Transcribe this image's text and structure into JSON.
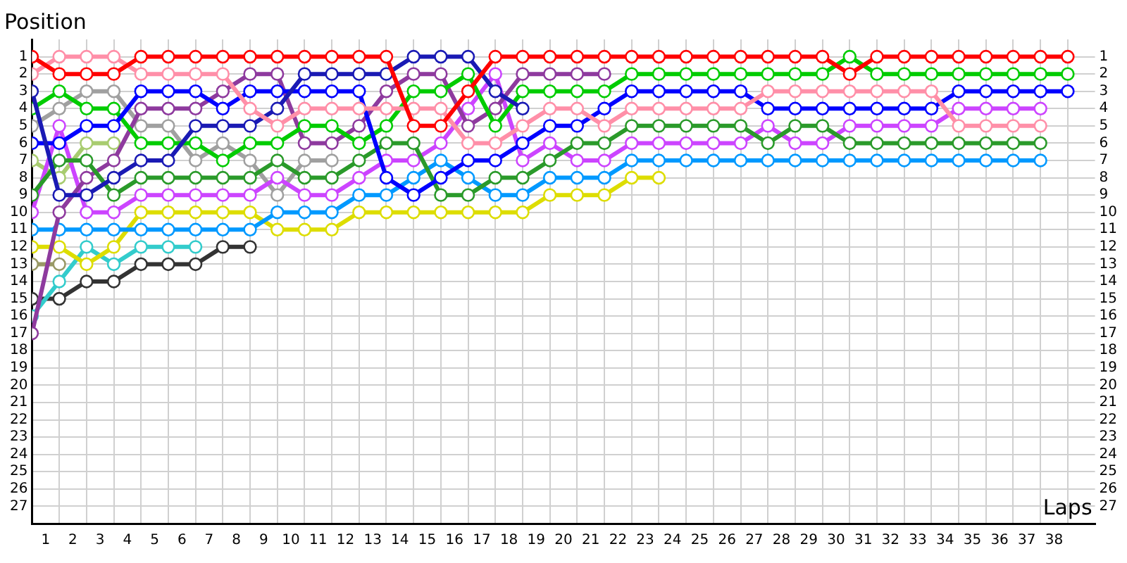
{
  "chart_data": {
    "type": "line",
    "xlabel": "Laps",
    "ylabel": "Position",
    "x": [
      0,
      1,
      2,
      3,
      4,
      5,
      6,
      7,
      8,
      9,
      10,
      11,
      12,
      13,
      14,
      15,
      16,
      17,
      18,
      19,
      20,
      21,
      22,
      23,
      24,
      25,
      26,
      27,
      28,
      29,
      30,
      31,
      32,
      33,
      34,
      35,
      36,
      37,
      38
    ],
    "xlim": [
      0,
      39
    ],
    "xticks": [
      {
        "value": 0,
        "label": null
      },
      {
        "value": 0.5,
        "label": "1"
      },
      {
        "value": 1,
        "label": null
      },
      {
        "value": 1.5,
        "label": "2"
      },
      {
        "value": 2,
        "label": null
      },
      {
        "value": 2.5,
        "label": "3"
      },
      {
        "value": 3,
        "label": null
      },
      {
        "value": 3.5,
        "label": "4"
      },
      {
        "value": 4,
        "label": null
      },
      {
        "value": 4.5,
        "label": "5"
      },
      {
        "value": 5,
        "label": null
      },
      {
        "value": 5.5,
        "label": "6"
      },
      {
        "value": 6,
        "label": null
      },
      {
        "value": 6.5,
        "label": "7"
      },
      {
        "value": 7,
        "label": null
      },
      {
        "value": 7.5,
        "label": "8"
      },
      {
        "value": 8,
        "label": null
      },
      {
        "value": 8.5,
        "label": "9"
      },
      {
        "value": 9,
        "label": null
      },
      {
        "value": 9.5,
        "label": "10"
      },
      {
        "value": 10,
        "label": null
      },
      {
        "value": 10.5,
        "label": "11"
      },
      {
        "value": 11,
        "label": null
      },
      {
        "value": 11.5,
        "label": "12"
      },
      {
        "value": 12,
        "label": null
      },
      {
        "value": 12.5,
        "label": "13"
      },
      {
        "value": 13,
        "label": null
      },
      {
        "value": 13.5,
        "label": "14"
      },
      {
        "value": 14,
        "label": null
      },
      {
        "value": 14.5,
        "label": "15"
      },
      {
        "value": 15,
        "label": null
      },
      {
        "value": 15.5,
        "label": "16"
      },
      {
        "value": 16,
        "label": null
      },
      {
        "value": 16.5,
        "label": "17"
      },
      {
        "value": 17,
        "label": null
      },
      {
        "value": 17.5,
        "label": "18"
      },
      {
        "value": 18,
        "label": null
      },
      {
        "value": 18.5,
        "label": "19"
      },
      {
        "value": 19,
        "label": null
      },
      {
        "value": 19.5,
        "label": "20"
      },
      {
        "value": 20,
        "label": null
      },
      {
        "value": 20.5,
        "label": "21"
      },
      {
        "value": 21,
        "label": null
      },
      {
        "value": 21.5,
        "label": "22"
      },
      {
        "value": 22,
        "label": null
      },
      {
        "value": 22.5,
        "label": "23"
      },
      {
        "value": 23,
        "label": null
      },
      {
        "value": 23.5,
        "label": "24"
      },
      {
        "value": 24,
        "label": null
      },
      {
        "value": 24.5,
        "label": "25"
      },
      {
        "value": 25,
        "label": null
      },
      {
        "value": 25.5,
        "label": "26"
      },
      {
        "value": 26,
        "label": null
      },
      {
        "value": 26.5,
        "label": "27"
      },
      {
        "value": 27,
        "label": null
      },
      {
        "value": 27.5,
        "label": "28"
      },
      {
        "value": 28,
        "label": null
      },
      {
        "value": 28.5,
        "label": "29"
      },
      {
        "value": 29,
        "label": null
      },
      {
        "value": 29.5,
        "label": "30"
      },
      {
        "value": 30,
        "label": null
      },
      {
        "value": 30.5,
        "label": "31"
      },
      {
        "value": 31,
        "label": null
      },
      {
        "value": 31.5,
        "label": "32"
      },
      {
        "value": 32,
        "label": null
      },
      {
        "value": 32.5,
        "label": "33"
      },
      {
        "value": 33,
        "label": null
      },
      {
        "value": 33.5,
        "label": "34"
      },
      {
        "value": 34,
        "label": null
      },
      {
        "value": 34.5,
        "label": "35"
      },
      {
        "value": 35,
        "label": null
      },
      {
        "value": 35.5,
        "label": "36"
      },
      {
        "value": 36,
        "label": null
      },
      {
        "value": 36.5,
        "label": "37"
      },
      {
        "value": 37,
        "label": null
      },
      {
        "value": 37.5,
        "label": "38"
      },
      {
        "value": 38,
        "label": null
      }
    ],
    "ylim": [
      28,
      0
    ],
    "yticks": [
      1,
      2,
      3,
      4,
      5,
      6,
      7,
      8,
      9,
      10,
      11,
      12,
      13,
      14,
      15,
      16,
      17,
      18,
      19,
      20,
      21,
      22,
      23,
      24,
      25,
      26,
      27
    ],
    "y2lim": [
      28,
      0
    ],
    "y2ticks": [
      1,
      2,
      3,
      4,
      5,
      6,
      7,
      8,
      9,
      10,
      11,
      12,
      13,
      14,
      15,
      16,
      17,
      18,
      19,
      20,
      21,
      22,
      23,
      24,
      25,
      26,
      27
    ],
    "grid": true,
    "marker": "circle",
    "line_style": "solid",
    "series": [
      {
        "color": "#ff0000",
        "values": [
          1,
          2,
          2,
          2,
          1,
          1,
          1,
          1,
          1,
          1,
          1,
          1,
          1,
          1,
          5,
          5,
          3,
          1,
          1,
          1,
          1,
          1,
          1,
          1,
          1,
          1,
          1,
          1,
          1,
          1,
          2,
          1,
          1,
          1,
          1,
          1,
          1,
          1,
          1
        ]
      },
      {
        "color": "#ff8fa8",
        "values": [
          2,
          1,
          1,
          1,
          2,
          2,
          2,
          2,
          4,
          5,
          4,
          4,
          4,
          4,
          4,
          4,
          6,
          6,
          5,
          4,
          4,
          5,
          4,
          4,
          4,
          4,
          4,
          3,
          3,
          3,
          3,
          3,
          3,
          3,
          5,
          5,
          5,
          5,
          null
        ]
      },
      {
        "color": "#1a1ab4",
        "values": [
          3,
          9,
          9,
          8,
          7,
          7,
          5,
          5,
          5,
          4,
          2,
          2,
          2,
          2,
          1,
          1,
          1,
          3,
          4,
          null,
          null,
          null,
          null,
          null,
          null,
          null,
          null,
          null,
          null,
          null,
          null,
          null,
          null,
          null,
          null,
          null,
          null,
          null,
          null
        ]
      },
      {
        "color": "#0000ff",
        "values": [
          6,
          6,
          5,
          5,
          3,
          3,
          3,
          4,
          3,
          3,
          3,
          3,
          3,
          8,
          9,
          8,
          7,
          7,
          6,
          5,
          5,
          4,
          3,
          3,
          3,
          3,
          3,
          4,
          4,
          4,
          4,
          4,
          4,
          4,
          3,
          3,
          3,
          3,
          3
        ]
      },
      {
        "color": "#00cc00",
        "values": [
          4,
          3,
          4,
          4,
          6,
          6,
          6,
          7,
          6,
          6,
          5,
          5,
          6,
          5,
          3,
          3,
          2,
          5,
          3,
          3,
          3,
          3,
          2,
          2,
          2,
          2,
          2,
          2,
          2,
          2,
          1,
          2,
          2,
          2,
          2,
          2,
          2,
          2,
          2
        ]
      },
      {
        "color": "#2a9a2a",
        "values": [
          9,
          7,
          7,
          9,
          8,
          8,
          8,
          8,
          8,
          7,
          8,
          8,
          7,
          6,
          6,
          9,
          9,
          8,
          8,
          7,
          6,
          6,
          5,
          5,
          5,
          5,
          5,
          6,
          5,
          5,
          6,
          6,
          6,
          6,
          6,
          6,
          6,
          6,
          null
        ]
      },
      {
        "color": "#8e3a9e",
        "values": [
          17,
          10,
          8,
          7,
          4,
          4,
          4,
          3,
          2,
          2,
          6,
          6,
          5,
          3,
          2,
          2,
          5,
          4,
          2,
          2,
          2,
          2,
          null,
          null,
          null,
          null,
          null,
          null,
          null,
          null,
          null,
          null,
          null,
          null,
          null,
          null,
          null,
          null,
          null
        ]
      },
      {
        "color": "#cc44ff",
        "values": [
          10,
          5,
          10,
          10,
          9,
          9,
          9,
          9,
          9,
          8,
          9,
          9,
          8,
          7,
          7,
          6,
          4,
          2,
          7,
          6,
          7,
          7,
          6,
          6,
          6,
          6,
          6,
          5,
          6,
          6,
          5,
          5,
          5,
          5,
          4,
          4,
          4,
          4,
          null
        ]
      },
      {
        "color": "#a0a0a0",
        "values": [
          5,
          4,
          3,
          3,
          5,
          5,
          7,
          6,
          7,
          9,
          7,
          7,
          null,
          null,
          null,
          null,
          null,
          null,
          null,
          null,
          null,
          null,
          null,
          null,
          null,
          null,
          null,
          null,
          null,
          null,
          null,
          null,
          null,
          null,
          null,
          null,
          null,
          null,
          null
        ]
      },
      {
        "color": "#a8cc70",
        "values": [
          7,
          8,
          6,
          6,
          null,
          null,
          null,
          null,
          null,
          null,
          null,
          null,
          null,
          null,
          null,
          null,
          null,
          null,
          null,
          null,
          null,
          null,
          null,
          null,
          null,
          null,
          null,
          null,
          null,
          null,
          null,
          null,
          null,
          null,
          null,
          null,
          null,
          null,
          null
        ]
      },
      {
        "color": "#999966",
        "values": [
          13,
          13,
          null,
          null,
          null,
          null,
          null,
          null,
          null,
          null,
          null,
          null,
          null,
          null,
          null,
          null,
          null,
          null,
          null,
          null,
          null,
          null,
          null,
          null,
          null,
          null,
          null,
          null,
          null,
          null,
          null,
          null,
          null,
          null,
          null,
          null,
          null,
          null,
          null
        ]
      },
      {
        "color": "#0099ff",
        "values": [
          11,
          11,
          11,
          11,
          11,
          11,
          11,
          11,
          11,
          10,
          10,
          10,
          9,
          9,
          8,
          7,
          8,
          9,
          9,
          8,
          8,
          8,
          7,
          7,
          7,
          7,
          7,
          7,
          7,
          7,
          7,
          7,
          7,
          7,
          7,
          7,
          7,
          7,
          null
        ]
      },
      {
        "color": "#dddd00",
        "values": [
          12,
          12,
          13,
          12,
          10,
          10,
          10,
          10,
          10,
          11,
          11,
          11,
          10,
          10,
          10,
          10,
          10,
          10,
          10,
          9,
          9,
          9,
          8,
          8,
          null,
          null,
          null,
          null,
          null,
          null,
          null,
          null,
          null,
          null,
          null,
          null,
          null,
          null,
          null
        ]
      },
      {
        "color": "#33cccc",
        "values": [
          16,
          14,
          12,
          13,
          12,
          12,
          12,
          null,
          null,
          null,
          null,
          null,
          null,
          null,
          null,
          null,
          null,
          null,
          null,
          null,
          null,
          null,
          null,
          null,
          null,
          null,
          null,
          null,
          null,
          null,
          null,
          null,
          null,
          null,
          null,
          null,
          null,
          null,
          null
        ]
      },
      {
        "color": "#333333",
        "values": [
          15,
          15,
          14,
          14,
          13,
          13,
          13,
          12,
          12,
          null,
          null,
          null,
          null,
          null,
          null,
          null,
          null,
          null,
          null,
          null,
          null,
          null,
          null,
          null,
          null,
          null,
          null,
          null,
          null,
          null,
          null,
          null,
          null,
          null,
          null,
          null,
          null,
          null,
          null
        ]
      }
    ]
  }
}
